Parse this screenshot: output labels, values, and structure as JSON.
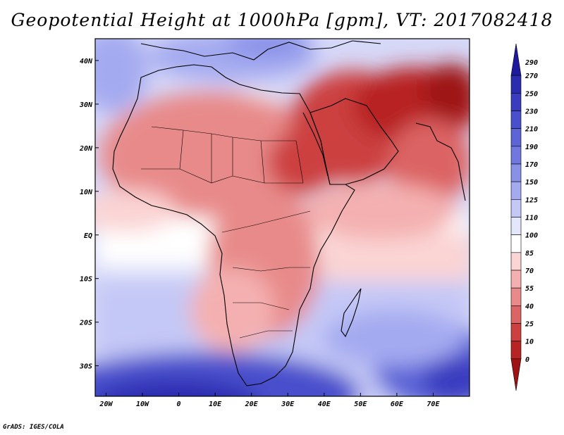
{
  "title": "Geopotential Height at 1000hPa [gpm], VT: 2017082418",
  "credit": "GrADS: IGES/COLA",
  "map": {
    "variable": "Geopotential Height",
    "level": "1000hPa",
    "units": "gpm",
    "valid_time": "2017082418",
    "lon_range": [
      -23,
      80
    ],
    "lat_range": [
      -37,
      45
    ],
    "lon_ticks": [
      "20W",
      "10W",
      "0",
      "10E",
      "20E",
      "30E",
      "40E",
      "50E",
      "60E",
      "70E"
    ],
    "lat_ticks": [
      "40N",
      "30N",
      "20N",
      "10N",
      "EQ",
      "10S",
      "20S",
      "30S"
    ]
  },
  "colorbar": {
    "labels": [
      "290",
      "270",
      "250",
      "230",
      "210",
      "190",
      "170",
      "150",
      "125",
      "110",
      "100",
      "85",
      "70",
      "55",
      "40",
      "25",
      "10",
      "0"
    ],
    "colors": [
      "#1e1a9e",
      "#2b2bb0",
      "#3a3cc0",
      "#4a50cc",
      "#5c64d6",
      "#7078e0",
      "#8890e8",
      "#a4aaf0",
      "#c4c8f6",
      "#e4e6fb",
      "#ffffff",
      "#fbd4d4",
      "#f4b0b0",
      "#e88a8a",
      "#dc6464",
      "#cc4040",
      "#b82424",
      "#9e1414"
    ]
  }
}
